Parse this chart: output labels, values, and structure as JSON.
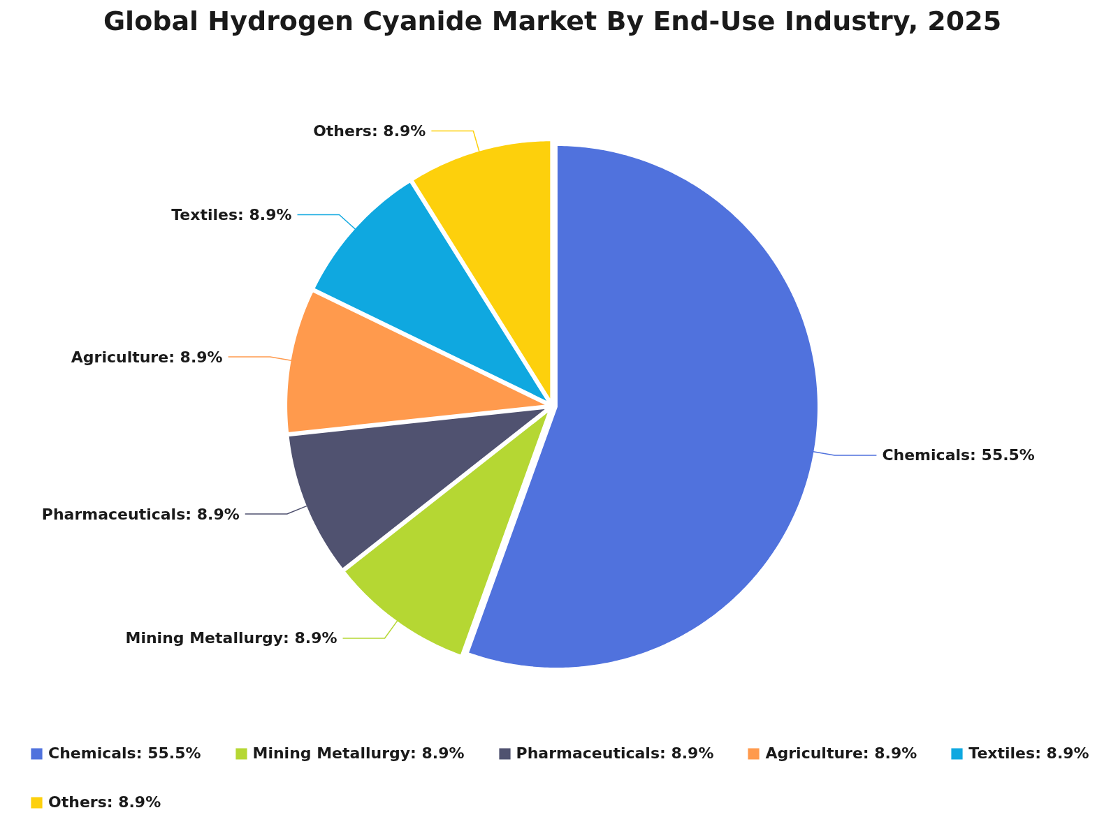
{
  "chart_data": {
    "type": "pie",
    "title": "Global Hydrogen Cyanide Market By End-Use Industry, 2025",
    "categories": [
      "Chemicals: 55.5%",
      "Mining Metallurgy: 8.9%",
      "Pharmaceuticals: 8.9%",
      "Agriculture: 8.9%",
      "Textiles: 8.9%",
      "Others: 8.9%"
    ],
    "values": [
      55.5,
      8.9,
      8.9,
      8.9,
      8.9,
      8.9
    ],
    "colors": [
      "#5072dd",
      "#b5d733",
      "#505270",
      "#ff9a4d",
      "#0fa8e0",
      "#fdd00c"
    ],
    "legend": "bottom"
  }
}
